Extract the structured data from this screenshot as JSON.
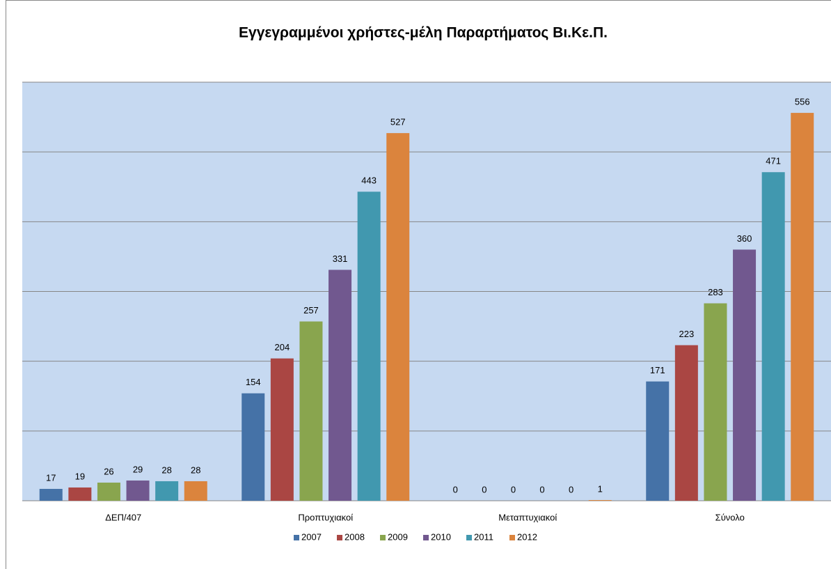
{
  "chart_data": {
    "type": "bar",
    "title": "Εγγεγραμμένοι χρήστες-μέλη Παραρτήματος Βι.Κε.Π.",
    "categories": [
      "ΔΕΠ/407",
      "Προπτυχιακοί",
      "Μεταπτυχιακοί",
      "Σύνολο"
    ],
    "series": [
      {
        "name": "2007",
        "color": "#4572a7",
        "values": [
          17,
          154,
          0,
          171
        ]
      },
      {
        "name": "2008",
        "color": "#aa4643",
        "values": [
          19,
          204,
          0,
          223
        ]
      },
      {
        "name": "2009",
        "color": "#89a54e",
        "values": [
          26,
          257,
          0,
          283
        ]
      },
      {
        "name": "2010",
        "color": "#71588f",
        "values": [
          29,
          331,
          0,
          360
        ]
      },
      {
        "name": "2011",
        "color": "#4198af",
        "values": [
          28,
          443,
          0,
          471
        ]
      },
      {
        "name": "2012",
        "color": "#db843d",
        "values": [
          28,
          527,
          1,
          556
        ]
      }
    ],
    "ylim": [
      0,
      600
    ],
    "yticks": [
      0,
      100,
      200,
      300,
      400,
      500,
      600
    ],
    "grid": true,
    "legend": "bottom"
  }
}
